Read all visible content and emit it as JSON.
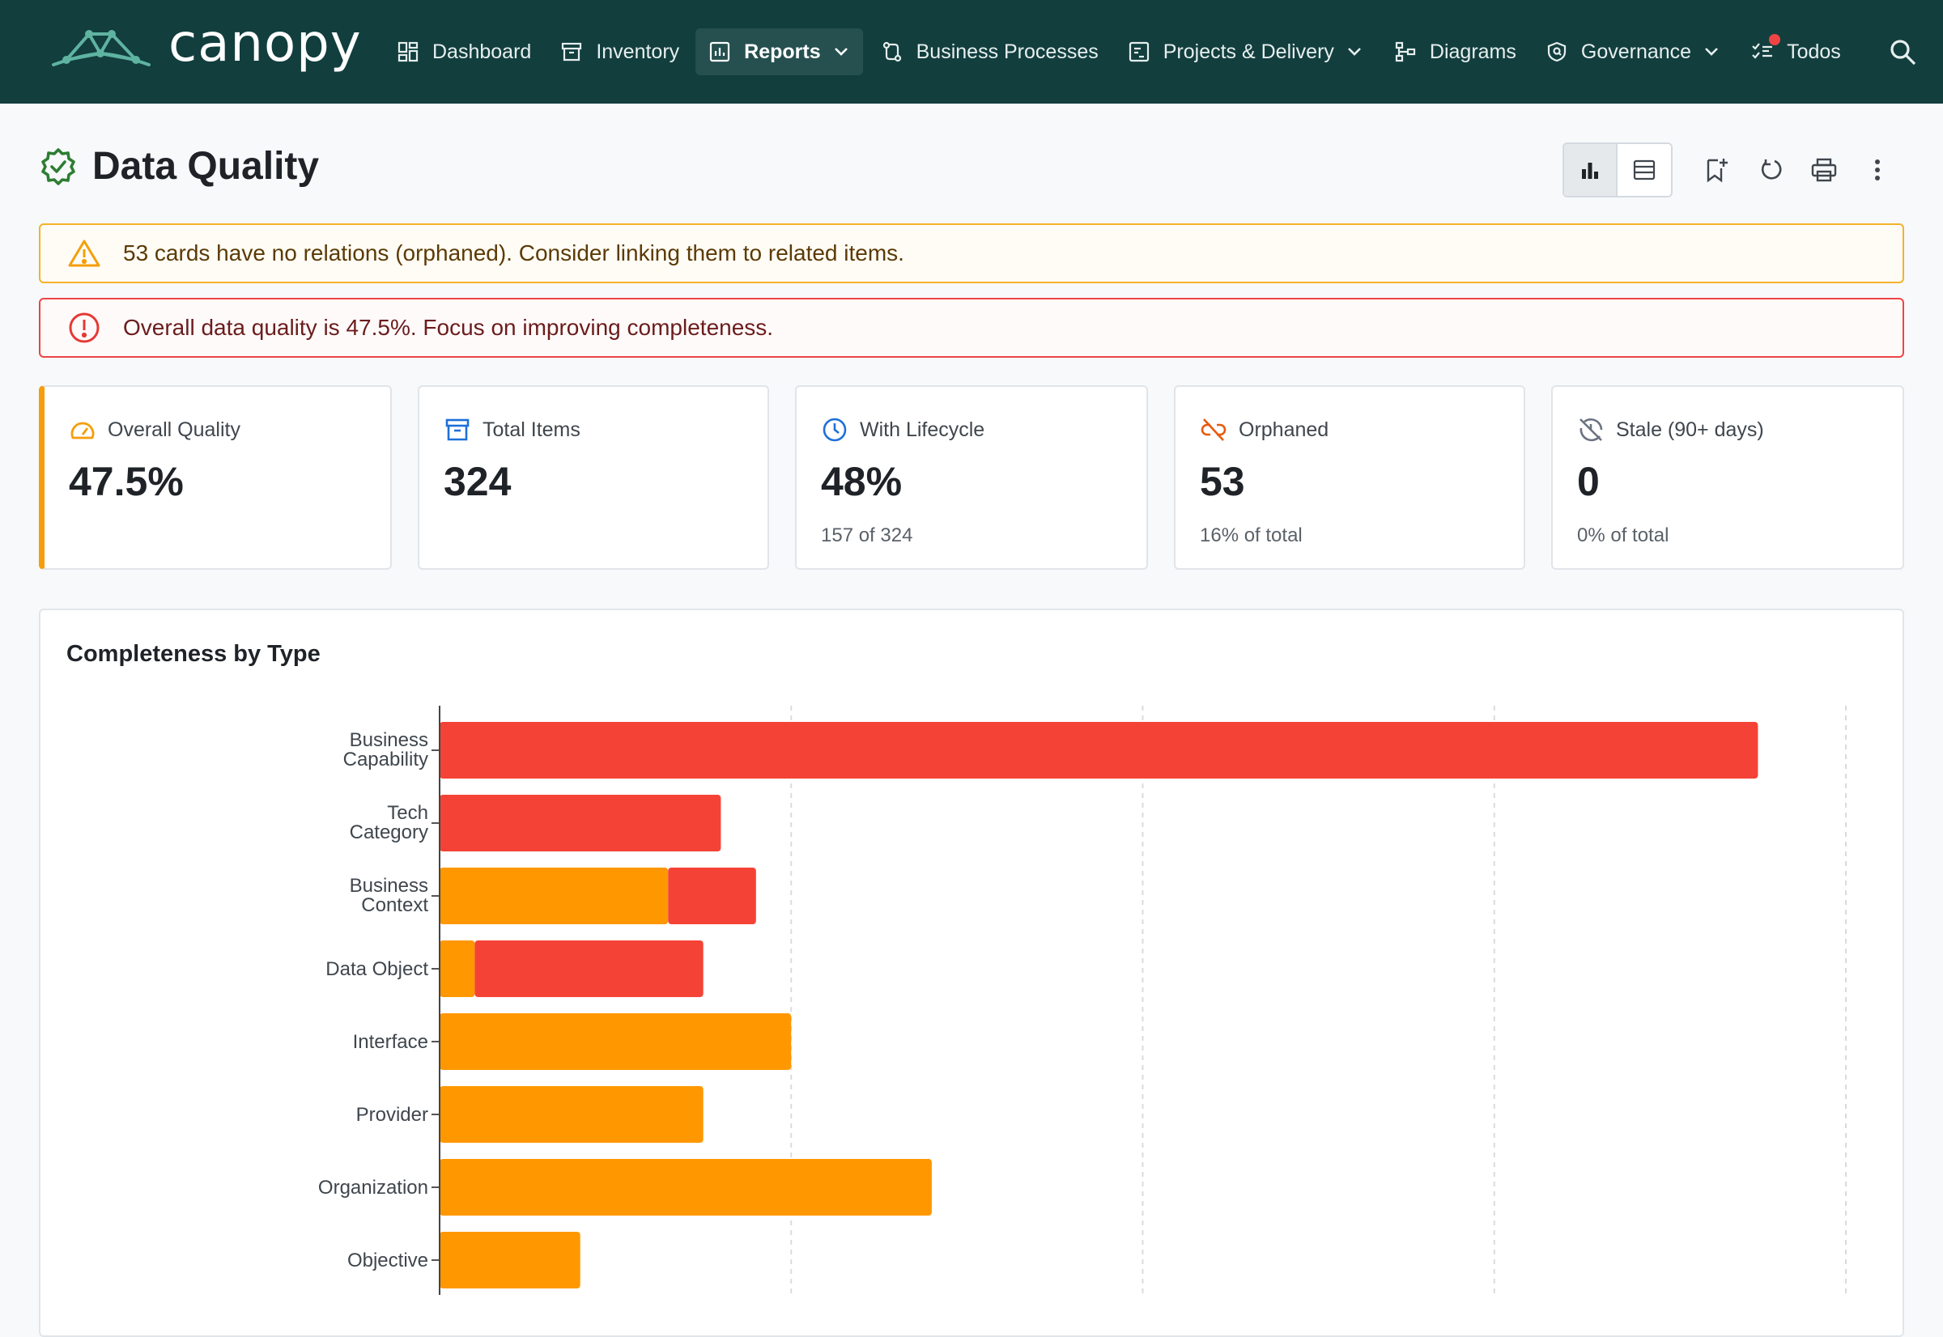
{
  "app": {
    "name": "canopy"
  },
  "nav": {
    "items": [
      {
        "label": "Dashboard",
        "icon": "dashboard-icon"
      },
      {
        "label": "Inventory",
        "icon": "archive-icon"
      },
      {
        "label": "Reports",
        "icon": "report-icon",
        "active": true,
        "dropdown": true
      },
      {
        "label": "Business Processes",
        "icon": "process-icon"
      },
      {
        "label": "Projects & Delivery",
        "icon": "project-icon",
        "dropdown": true
      },
      {
        "label": "Diagrams",
        "icon": "diagram-icon"
      },
      {
        "label": "Governance",
        "icon": "shield-icon",
        "dropdown": true
      },
      {
        "label": "Todos",
        "icon": "todo-icon",
        "notification_dot": true
      }
    ]
  },
  "page": {
    "title": "Data Quality"
  },
  "alerts": {
    "warning": "53 cards have no relations (orphaned). Consider linking them to related items.",
    "error": "Overall data quality is 47.5%. Focus on improving completeness."
  },
  "stats": [
    {
      "label": "Overall Quality",
      "value": "47.5%",
      "sub": "",
      "icon": "gauge-icon",
      "icon_color": "#f59e0b"
    },
    {
      "label": "Total Items",
      "value": "324",
      "sub": "",
      "icon": "archive-icon",
      "icon_color": "#1e6fd9"
    },
    {
      "label": "With Lifecycle",
      "value": "48%",
      "sub": "157 of 324",
      "icon": "clock-icon",
      "icon_color": "#1e6fd9"
    },
    {
      "label": "Orphaned",
      "value": "53",
      "sub": "16% of total",
      "icon": "link-off-icon",
      "icon_color": "#e8590c"
    },
    {
      "label": "Stale (90+ days)",
      "value": "0",
      "sub": "0% of total",
      "icon": "history-off-icon",
      "icon_color": "#6b7280"
    }
  ],
  "colors": {
    "nav_bg": "#123e3e",
    "accent_orange": "#ff9800",
    "accent_red": "#f44336",
    "success_green": "#2e7d32"
  },
  "chart_data": {
    "type": "bar",
    "orientation": "horizontal",
    "stacked": true,
    "title": "Completeness by Type",
    "categories": [
      "Business Capability",
      "Tech Category",
      "Business Context",
      "Data Object",
      "Interface",
      "Provider",
      "Organization",
      "Objective"
    ],
    "category_lines": [
      [
        "Business",
        "Capability"
      ],
      [
        "Tech",
        "Category"
      ],
      [
        "Business",
        "Context"
      ],
      [
        "Data Object"
      ],
      [
        "Interface"
      ],
      [
        "Provider"
      ],
      [
        "Organization"
      ],
      [
        "Objective"
      ]
    ],
    "series": [
      {
        "color": "#ff9800",
        "values": [
          0,
          0,
          13,
          2,
          20,
          15,
          28,
          8
        ]
      },
      {
        "color": "#f44336",
        "values": [
          75,
          16,
          5,
          13,
          0,
          0,
          0,
          0
        ]
      }
    ],
    "xlim": [
      0,
      80
    ],
    "grid": "vertical-dashed",
    "legend": "none"
  }
}
